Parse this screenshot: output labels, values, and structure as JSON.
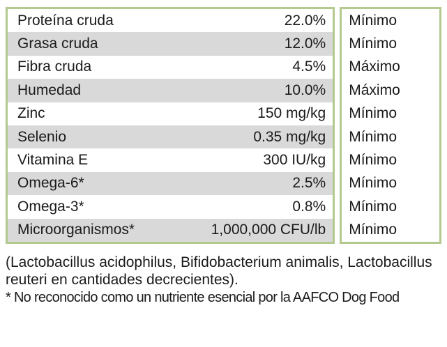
{
  "table": {
    "rows": [
      {
        "name": "Proteína cruda",
        "value": "22.0%",
        "limit": "Mínimo"
      },
      {
        "name": "Grasa cruda",
        "value": "12.0%",
        "limit": "Mínimo"
      },
      {
        "name": "Fibra cruda",
        "value": "4.5%",
        "limit": "Máximo"
      },
      {
        "name": "Humedad",
        "value": "10.0%",
        "limit": "Máximo"
      },
      {
        "name": "Zinc",
        "value": "150 mg/kg",
        "limit": "Mínimo"
      },
      {
        "name": "Selenio",
        "value": "0.35 mg/kg",
        "limit": "Mínimo"
      },
      {
        "name": "Vitamina E",
        "value": "300 IU/kg",
        "limit": "Mínimo"
      },
      {
        "name": "Omega-6*",
        "value": "2.5%",
        "limit": "Mínimo"
      },
      {
        "name": "Omega-3*",
        "value": "0.8%",
        "limit": "Mínimo"
      },
      {
        "name": "Microorganismos*",
        "value": "1,000,000 CFU/lb",
        "limit": "Mínimo"
      }
    ]
  },
  "footnotes": {
    "probiotics": "(Lactobacillus acidophilus, Bifidobacterium animalis, Lactobacillus reuteri en cantidades decrecientes).",
    "aafco": "* No reconocido como un nutriente esencial por la AAFCO Dog Food"
  },
  "colors": {
    "border_green": "#b3c98e",
    "stripe_gray": "#d9d9d9",
    "text": "#1a1a1a"
  }
}
